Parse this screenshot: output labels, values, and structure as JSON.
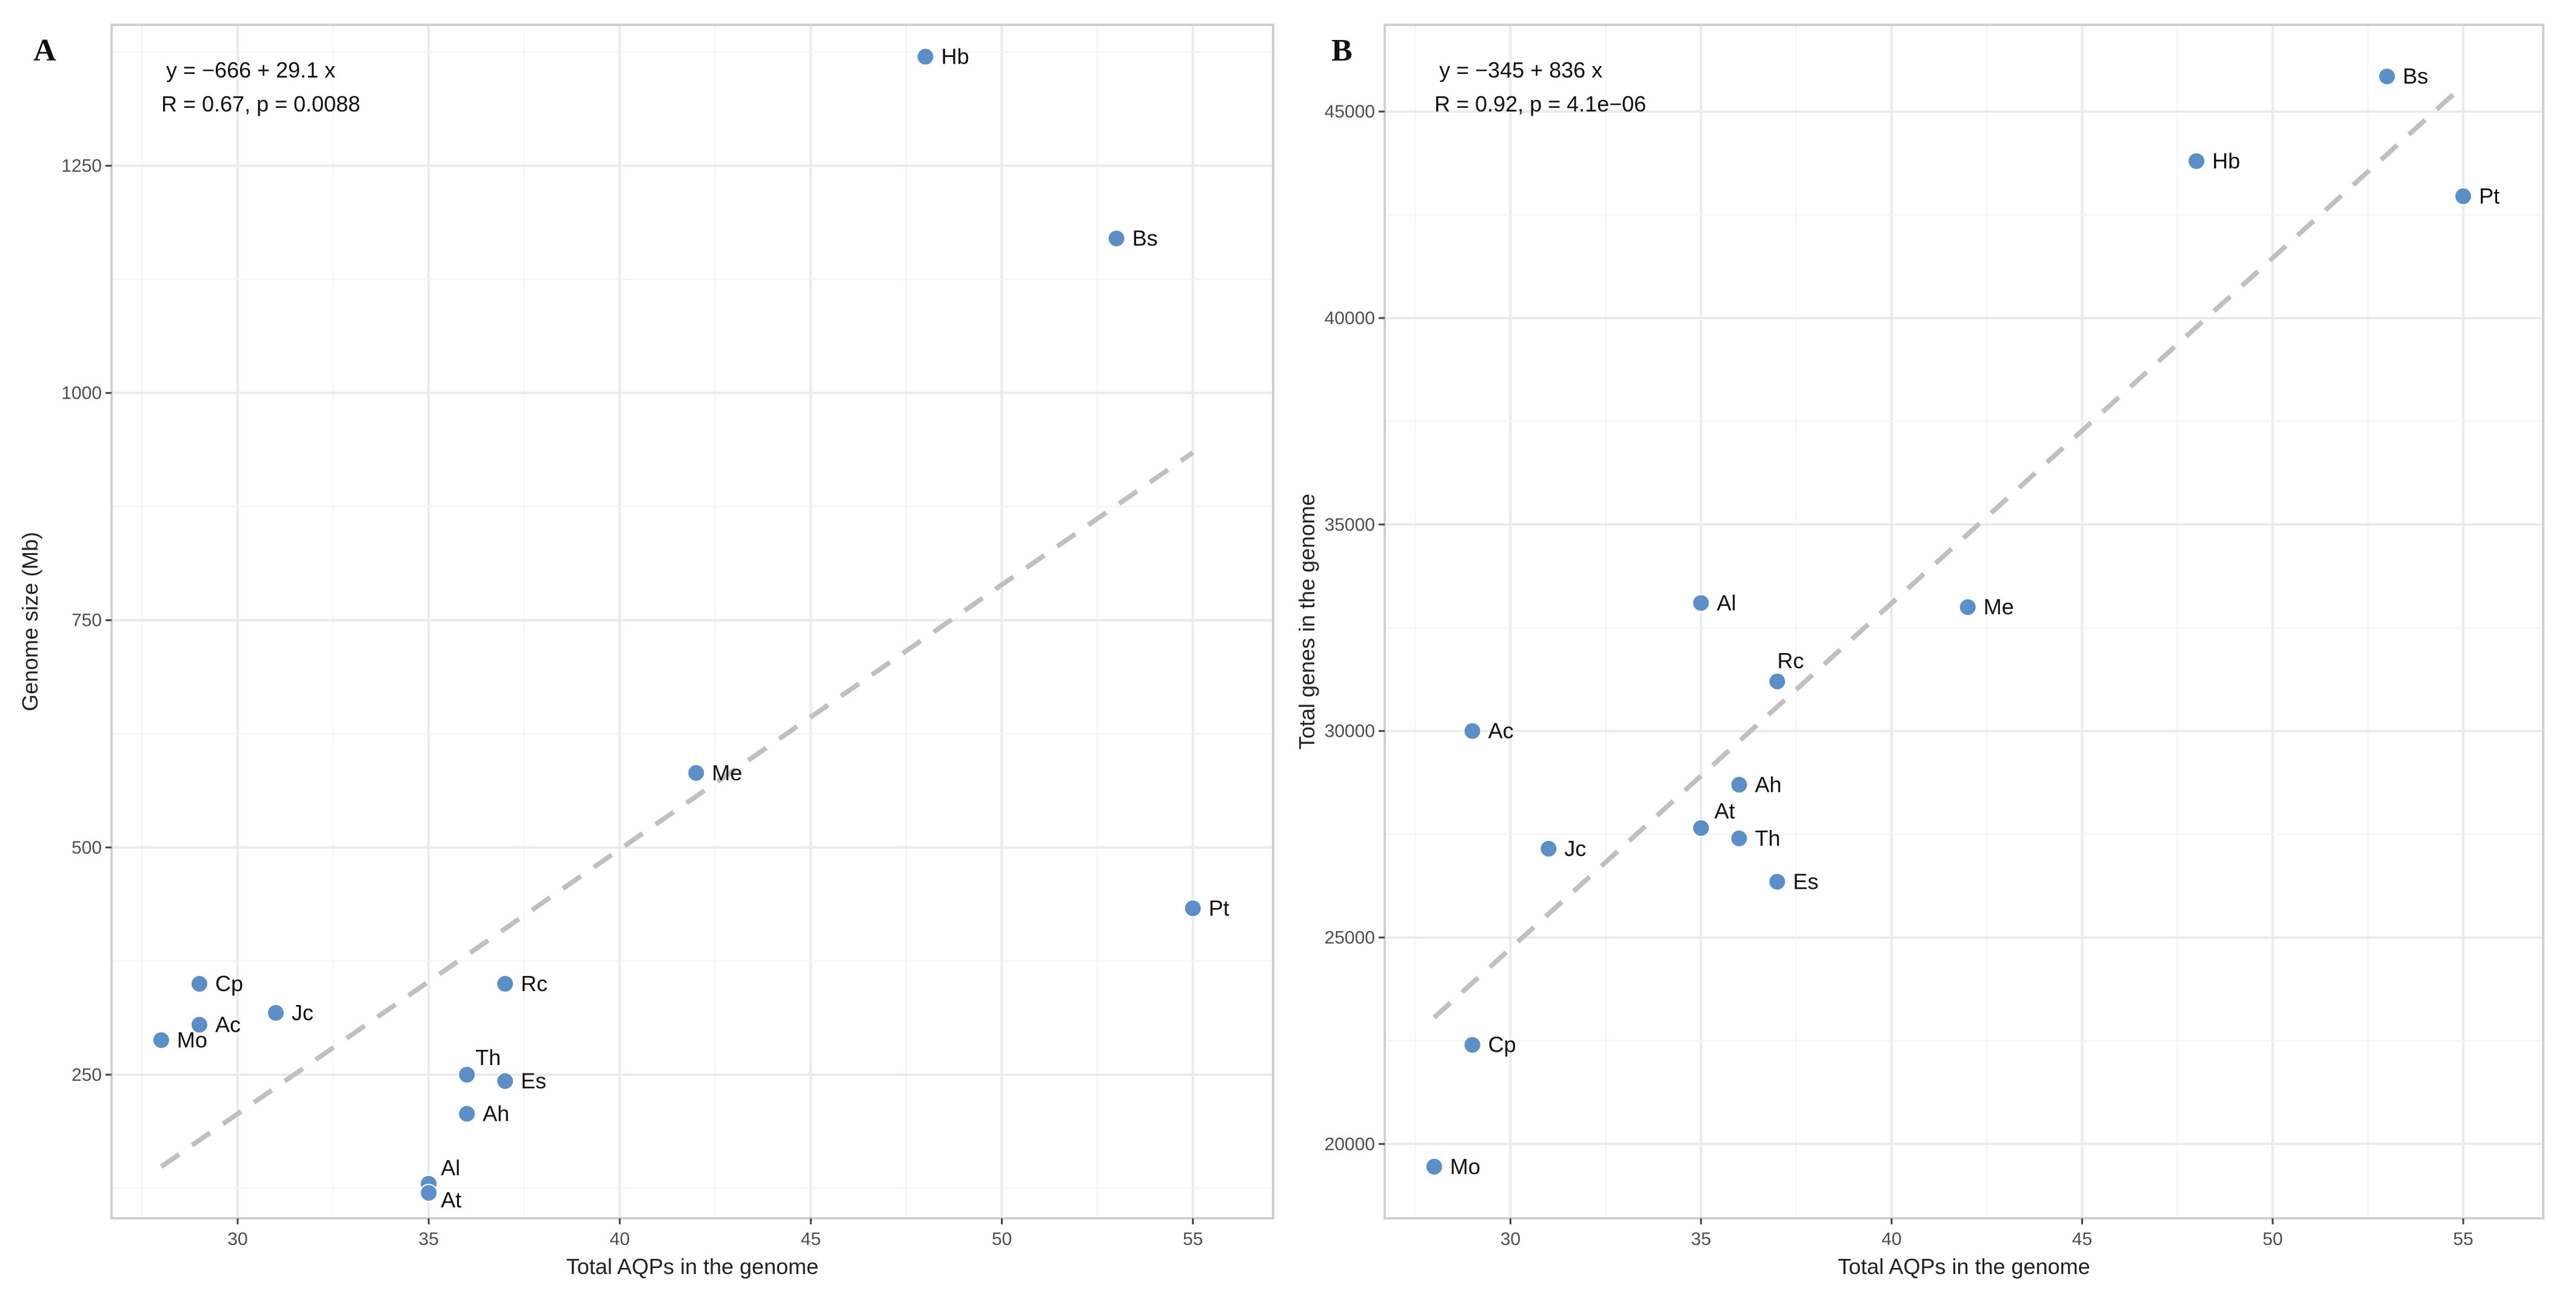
{
  "chart_data": [
    {
      "type": "scatter",
      "panel_label": "A",
      "title": "",
      "xlabel": "Total AQPs in the genome",
      "ylabel": "Genome size (Mb)",
      "xlim": [
        26.7,
        57.1
      ],
      "ylim": [
        92,
        1405
      ],
      "xticks": [
        30,
        35,
        40,
        45,
        50,
        55
      ],
      "yticks": [
        250,
        500,
        750,
        1000,
        1250
      ],
      "grid": true,
      "point_color": "#5b8fc9",
      "line_color": "#c0c0c0",
      "regression": {
        "intercept": -666,
        "slope": 29.1,
        "x_range": [
          28,
          55
        ]
      },
      "annotation": [
        "y = −666 + 29.1 x",
        "R = 0.67, p = 0.0088"
      ],
      "points": [
        {
          "label": "Hb",
          "x": 48,
          "y": 1370
        },
        {
          "label": "Bs",
          "x": 53,
          "y": 1170
        },
        {
          "label": "Me",
          "x": 42,
          "y": 582
        },
        {
          "label": "Pt",
          "x": 55,
          "y": 433
        },
        {
          "label": "Cp",
          "x": 29,
          "y": 350
        },
        {
          "label": "Rc",
          "x": 37,
          "y": 350
        },
        {
          "label": "Jc",
          "x": 31,
          "y": 318
        },
        {
          "label": "Ac",
          "x": 29,
          "y": 305
        },
        {
          "label": "Mo",
          "x": 28,
          "y": 288
        },
        {
          "label": "Th",
          "x": 36,
          "y": 250
        },
        {
          "label": "Es",
          "x": 37,
          "y": 243
        },
        {
          "label": "Ah",
          "x": 36,
          "y": 207
        },
        {
          "label": "Al",
          "x": 35,
          "y": 130
        },
        {
          "label": "At",
          "x": 35,
          "y": 120
        }
      ]
    },
    {
      "type": "scatter",
      "panel_label": "B",
      "title": "",
      "xlabel": "Total AQPs in the genome",
      "ylabel": "Total genes in the genome",
      "xlim": [
        26.7,
        57.1
      ],
      "ylim": [
        18200,
        47100
      ],
      "xticks": [
        30,
        35,
        40,
        45,
        50,
        55
      ],
      "yticks": [
        20000,
        25000,
        30000,
        35000,
        40000,
        45000
      ],
      "grid": true,
      "point_color": "#5b8fc9",
      "line_color": "#c0c0c0",
      "regression": {
        "intercept": -345,
        "slope": 836,
        "x_range": [
          28,
          55
        ]
      },
      "annotation": [
        "y = −345 + 836 x",
        "R = 0.92, p = 4.1e−06"
      ],
      "points": [
        {
          "label": "Bs",
          "x": 53,
          "y": 45850
        },
        {
          "label": "Hb",
          "x": 48,
          "y": 43800
        },
        {
          "label": "Pt",
          "x": 55,
          "y": 42950
        },
        {
          "label": "Al",
          "x": 35,
          "y": 33100
        },
        {
          "label": "Me",
          "x": 42,
          "y": 33000
        },
        {
          "label": "Rc",
          "x": 37,
          "y": 31200
        },
        {
          "label": "Ac",
          "x": 29,
          "y": 30000
        },
        {
          "label": "Ah",
          "x": 36,
          "y": 28700
        },
        {
          "label": "At",
          "x": 35,
          "y": 27650
        },
        {
          "label": "Th",
          "x": 36,
          "y": 27400
        },
        {
          "label": "Jc",
          "x": 31,
          "y": 27150
        },
        {
          "label": "Es",
          "x": 37,
          "y": 26350
        },
        {
          "label": "Cp",
          "x": 29,
          "y": 22400
        },
        {
          "label": "Mo",
          "x": 28,
          "y": 19450
        }
      ]
    }
  ]
}
